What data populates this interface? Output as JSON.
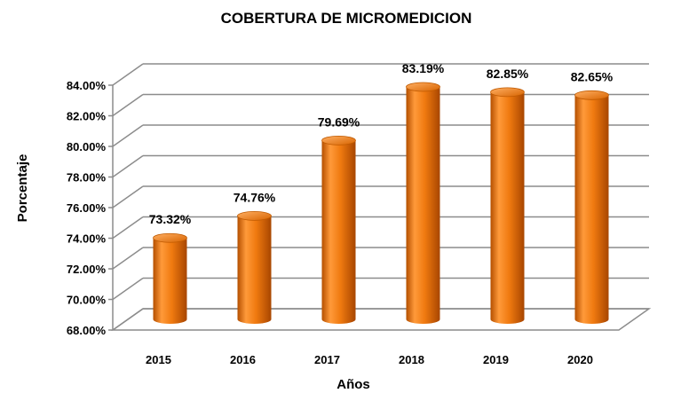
{
  "chart_data": {
    "type": "bar",
    "title": "COBERTURA DE MICROMEDICION",
    "xlabel": "Años",
    "ylabel": "Porcentaje",
    "categories": [
      "2015",
      "2016",
      "2017",
      "2018",
      "2019",
      "2020"
    ],
    "values": [
      73.32,
      74.76,
      79.69,
      83.19,
      82.85,
      82.65
    ],
    "data_labels": [
      "73.32%",
      "74.76%",
      "79.69%",
      "83.19%",
      "82.85%",
      "82.65%"
    ],
    "ylim": [
      68,
      84
    ],
    "yticks": [
      68,
      70,
      72,
      74,
      76,
      78,
      80,
      82,
      84
    ],
    "ytick_labels": [
      "68.00%",
      "70.00%",
      "72.00%",
      "74.00%",
      "76.00%",
      "78.00%",
      "80.00%",
      "82.00%",
      "84.00%"
    ],
    "grid": true,
    "style": "3d-cylinder",
    "bar_color": "#f07a10",
    "legend": "none"
  }
}
